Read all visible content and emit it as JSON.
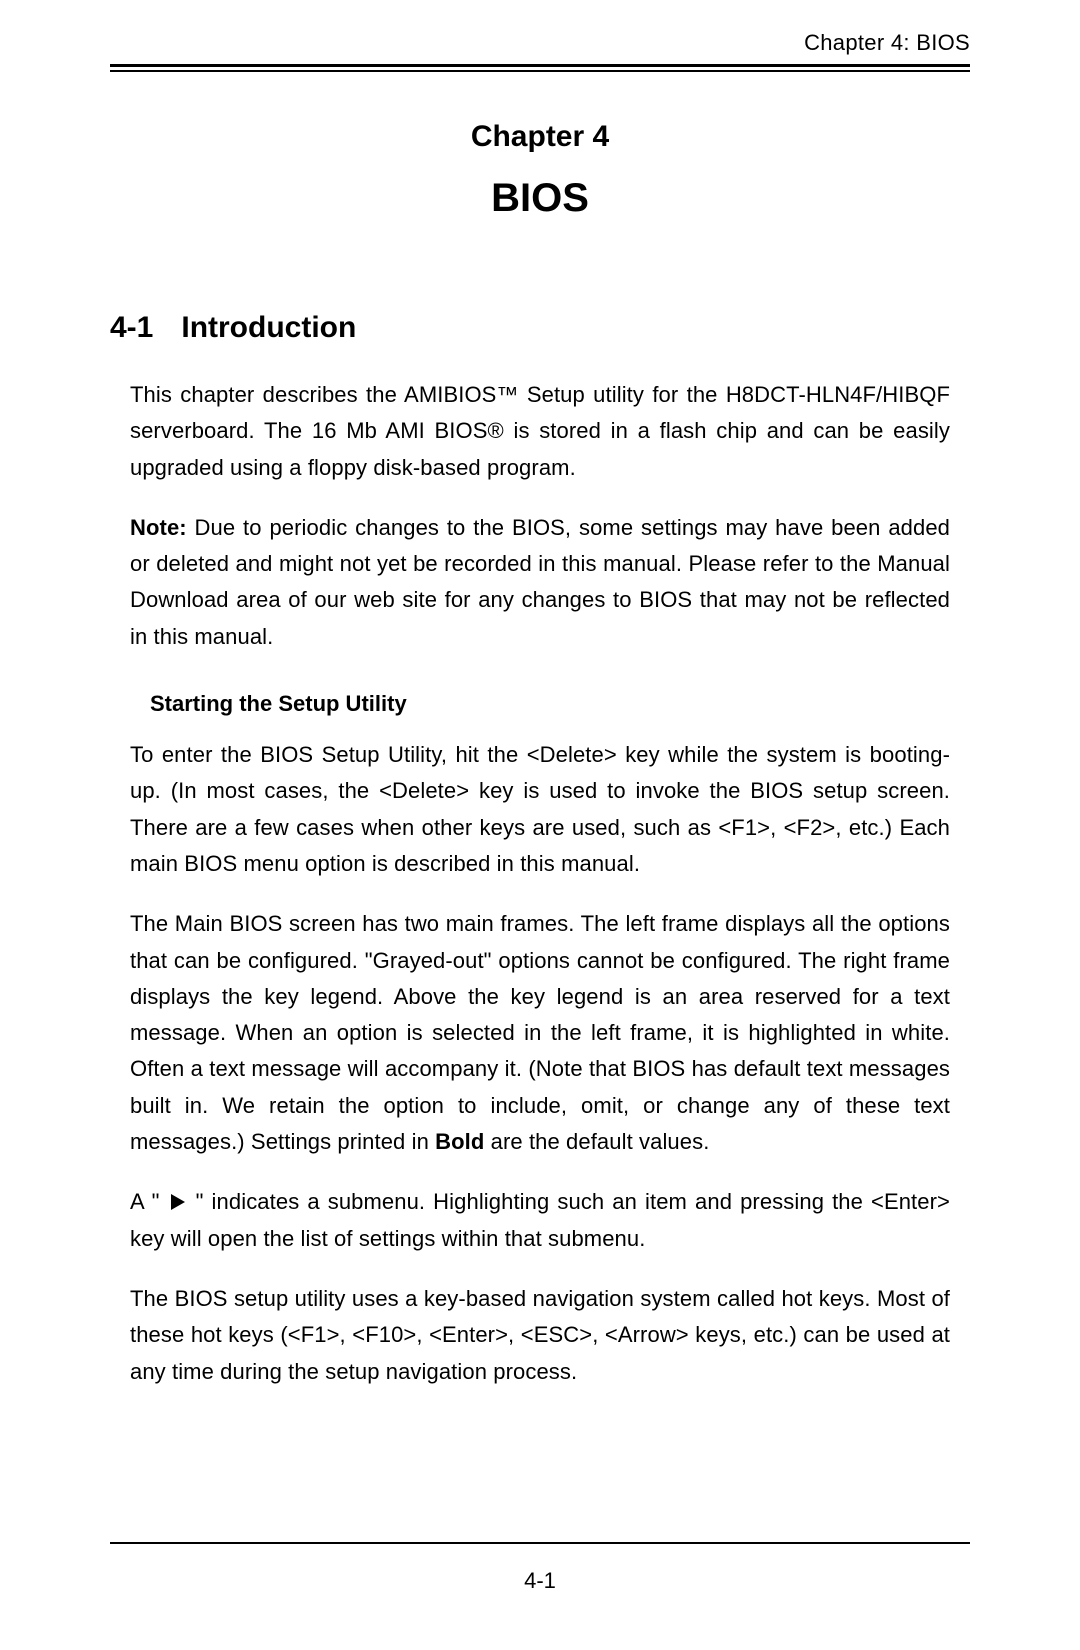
{
  "header": {
    "running_head": "Chapter 4: BIOS"
  },
  "chapter": {
    "label": "Chapter 4",
    "title": "BIOS"
  },
  "section": {
    "number": "4-1",
    "title": "Introduction"
  },
  "paragraphs": {
    "intro": "This chapter describes the AMIBIOS™ Setup utility for the H8DCT-HLN4F/HIBQF serverboard. The 16 Mb AMI BIOS® is stored in a flash chip and can be easily upgraded using a floppy disk-based program.",
    "note_label": "Note:",
    "note_body": " Due to periodic changes to the BIOS, some settings may have been added or deleted and might not yet be recorded in this manual. Please refer to the Manual Download area of our web site for any changes to BIOS that may not be reflected in this manual.",
    "sub_heading": "Starting the Setup Utility",
    "p3": "To enter the BIOS Setup Utility, hit the <Delete> key while the system is booting-up. (In most cases, the <Delete> key is used to invoke the BIOS setup screen. There are a few cases when other keys are used, such as <F1>, <F2>, etc.) Each main BIOS menu option is described in this manual.",
    "p4_a": "The Main BIOS screen has two main frames. The left frame displays all the options that can be configured. \"Grayed-out\" options cannot be configured. The right frame displays the key legend. Above the key legend is an area reserved for a text message. When an option is selected in the left frame, it is highlighted in white. Often a text message will accompany it. (Note that BIOS has default text messages built in. We retain the option to include, omit, or change any of these text messages.) Settings printed in ",
    "p4_bold": "Bold",
    "p4_b": " are the default values.",
    "p5_a": "A \" ",
    "p5_b": " \"   indicates a submenu.  Highlighting such an item and pressing the <Enter> key will open the list of settings within that submenu.",
    "p6": "The BIOS setup utility uses a key-based navigation system called hot keys. Most of these hot keys (<F1>, <F10>, <Enter>, <ESC>, <Arrow> keys, etc.) can be used at any time during the setup navigation process."
  },
  "footer": {
    "page_number": "4-1"
  },
  "colors": {
    "text": "#000000",
    "background": "#ffffff",
    "rule": "#000000"
  },
  "typography": {
    "body_fontsize_pt": 16,
    "heading_fontsize_pt": 22,
    "chapter_title_fontsize_pt": 30,
    "font_family": "Arial, Helvetica, sans-serif"
  }
}
